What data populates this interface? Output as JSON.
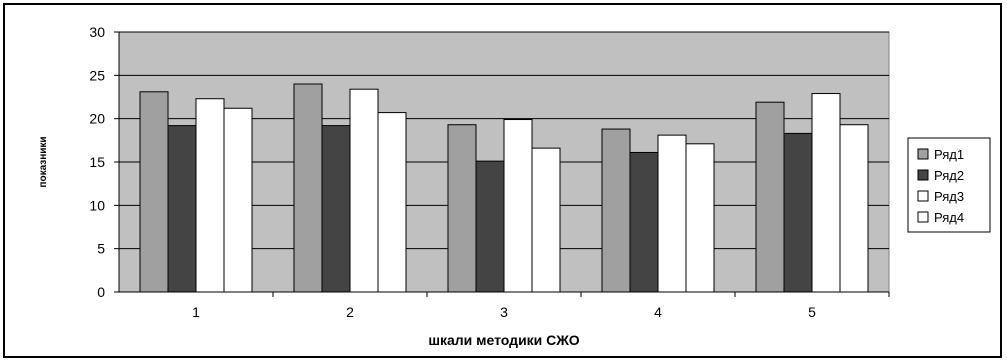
{
  "chart_data": {
    "type": "bar",
    "categories": [
      "1",
      "2",
      "3",
      "4",
      "5"
    ],
    "series": [
      {
        "name": "Ряд1",
        "values": [
          23.1,
          24.0,
          19.3,
          18.8,
          21.9
        ],
        "color": "#a0a0a0"
      },
      {
        "name": "Ряд2",
        "values": [
          19.2,
          19.2,
          15.1,
          16.1,
          18.3
        ],
        "color": "#444444"
      },
      {
        "name": "Ряд3",
        "values": [
          22.3,
          23.4,
          19.9,
          18.1,
          22.9
        ],
        "color": "#ffffff"
      },
      {
        "name": "Ряд4",
        "values": [
          21.2,
          20.7,
          16.6,
          17.1,
          19.3
        ],
        "color": "#ffffff"
      }
    ],
    "xlabel": "шкали методики СЖО",
    "ylabel": "показники",
    "ylim": [
      0,
      30
    ],
    "yticks": [
      "0",
      "5",
      "10",
      "15",
      "20",
      "25",
      "30"
    ],
    "grid": true,
    "legend": "right",
    "plot_background": "#c0c0c0"
  }
}
